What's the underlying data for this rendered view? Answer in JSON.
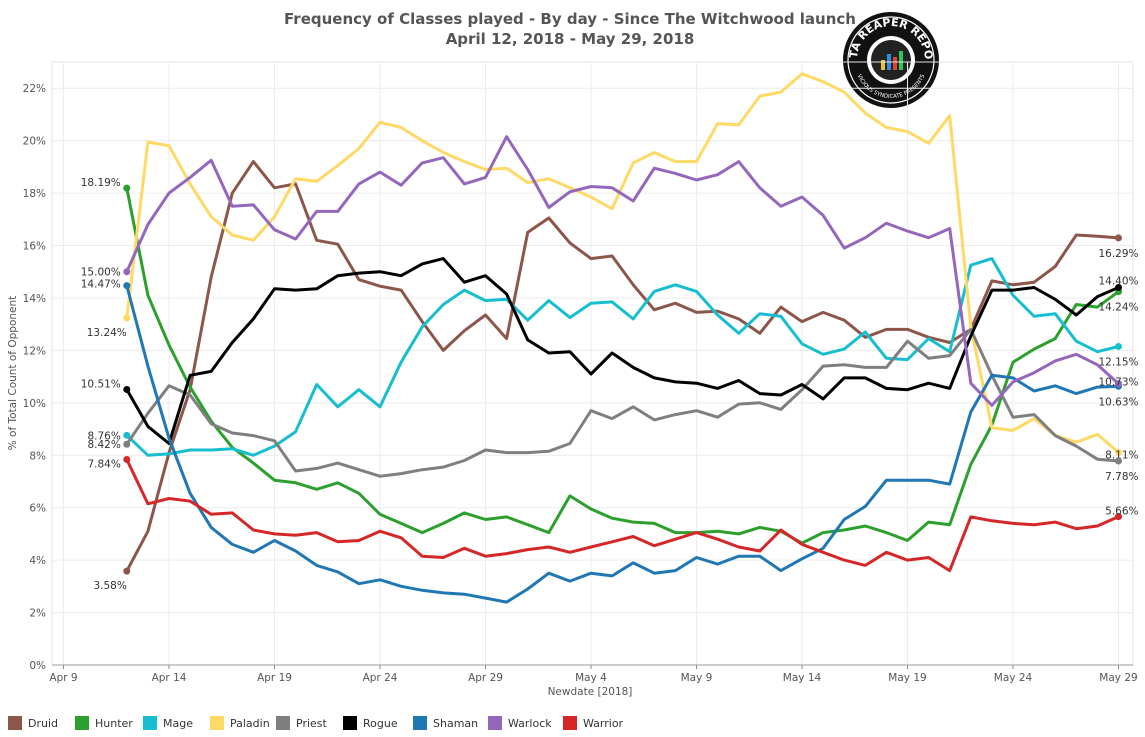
{
  "chart_data": {
    "type": "line",
    "title": "Frequency of Classes played - By day - Since The Witchwood launch",
    "subtitle": "April 12, 2018 - May 29, 2018",
    "xlabel": "Newdate [2018]",
    "ylabel": "% of Total Count of Opponent",
    "x_ticks": [
      "Apr 9",
      "Apr 14",
      "Apr 19",
      "Apr 24",
      "Apr 29",
      "May 4",
      "May 9",
      "May 14",
      "May 19",
      "May 24",
      "May 29"
    ],
    "y_ticks": [
      "0%",
      "2%",
      "4%",
      "6%",
      "8%",
      "10%",
      "12%",
      "14%",
      "16%",
      "18%",
      "20%",
      "22%"
    ],
    "ylim": [
      0,
      23
    ],
    "grid": true,
    "legend_position": "bottom",
    "x": [
      "Apr 12",
      "Apr 13",
      "Apr 14",
      "Apr 15",
      "Apr 16",
      "Apr 17",
      "Apr 18",
      "Apr 19",
      "Apr 20",
      "Apr 21",
      "Apr 22",
      "Apr 23",
      "Apr 24",
      "Apr 25",
      "Apr 26",
      "Apr 27",
      "Apr 28",
      "Apr 29",
      "Apr 30",
      "May 1",
      "May 2",
      "May 3",
      "May 4",
      "May 5",
      "May 6",
      "May 7",
      "May 8",
      "May 9",
      "May 10",
      "May 11",
      "May 12",
      "May 13",
      "May 14",
      "May 15",
      "May 16",
      "May 17",
      "May 18",
      "May 19",
      "May 20",
      "May 21",
      "May 22",
      "May 23",
      "May 24",
      "May 25",
      "May 26",
      "May 27",
      "May 28",
      "May 29"
    ],
    "series": [
      {
        "name": "Druid",
        "color": "#8c564b",
        "start_label": "3.58%",
        "end_label": "16.29%",
        "values": [
          3.58,
          5.1,
          8.1,
          10.5,
          14.8,
          18.0,
          19.2,
          18.2,
          18.35,
          16.2,
          16.05,
          14.7,
          14.45,
          14.3,
          13.1,
          12.0,
          12.75,
          13.35,
          12.45,
          16.5,
          17.05,
          16.1,
          15.5,
          15.6,
          14.5,
          13.55,
          13.8,
          13.45,
          13.5,
          13.2,
          12.65,
          13.65,
          13.1,
          13.45,
          13.15,
          12.5,
          12.8,
          12.8,
          12.5,
          12.3,
          12.8,
          14.65,
          14.5,
          14.6,
          15.2,
          16.4,
          16.35,
          16.29
        ]
      },
      {
        "name": "Hunter",
        "color": "#2ca02c",
        "start_label": "18.19%",
        "end_label": "14.24%",
        "values": [
          18.19,
          14.1,
          12.2,
          10.6,
          9.3,
          8.3,
          7.7,
          7.05,
          6.95,
          6.7,
          6.95,
          6.55,
          5.75,
          5.4,
          5.05,
          5.4,
          5.8,
          5.55,
          5.65,
          5.35,
          5.05,
          6.45,
          5.95,
          5.6,
          5.45,
          5.4,
          5.05,
          5.05,
          5.1,
          5.0,
          5.25,
          5.1,
          4.65,
          5.05,
          5.15,
          5.3,
          5.05,
          4.75,
          5.45,
          5.35,
          7.65,
          9.15,
          11.55,
          12.05,
          12.45,
          13.75,
          13.65,
          14.24
        ]
      },
      {
        "name": "Mage",
        "color": "#17becf",
        "start_label": "8.76%",
        "end_label": "12.15%",
        "values": [
          8.76,
          8.0,
          8.05,
          8.2,
          8.2,
          8.25,
          8.0,
          8.35,
          8.9,
          10.7,
          9.85,
          10.5,
          9.85,
          11.55,
          12.9,
          13.75,
          14.3,
          13.9,
          13.95,
          13.15,
          13.9,
          13.25,
          13.8,
          13.85,
          13.2,
          14.25,
          14.5,
          14.25,
          13.35,
          12.65,
          13.4,
          13.3,
          12.25,
          11.85,
          12.05,
          12.7,
          11.7,
          11.65,
          12.45,
          11.95,
          15.25,
          15.5,
          14.1,
          13.3,
          13.4,
          12.35,
          11.95,
          12.15
        ]
      },
      {
        "name": "Paladin",
        "color": "#ffd966",
        "start_label": "13.24%",
        "end_label": "8.11%",
        "values": [
          13.24,
          19.95,
          19.8,
          18.35,
          17.1,
          16.4,
          16.2,
          17.1,
          18.55,
          18.45,
          19.05,
          19.7,
          20.7,
          20.5,
          20.0,
          19.55,
          19.2,
          18.9,
          18.95,
          18.4,
          18.55,
          18.2,
          17.85,
          17.4,
          19.15,
          19.55,
          19.2,
          19.2,
          20.65,
          20.6,
          21.7,
          21.85,
          22.55,
          22.25,
          21.85,
          21.05,
          20.5,
          20.35,
          19.9,
          20.95,
          12.9,
          9.05,
          8.95,
          9.4,
          8.75,
          8.5,
          8.8,
          8.11
        ]
      },
      {
        "name": "Priest",
        "color": "#7f7f7f",
        "start_label": "8.42%",
        "end_label": "7.78%",
        "values": [
          8.42,
          9.6,
          10.65,
          10.3,
          9.2,
          8.85,
          8.75,
          8.55,
          7.4,
          7.5,
          7.7,
          7.45,
          7.2,
          7.3,
          7.45,
          7.55,
          7.8,
          8.2,
          8.1,
          8.1,
          8.15,
          8.45,
          9.7,
          9.4,
          9.85,
          9.35,
          9.55,
          9.7,
          9.45,
          9.95,
          10.0,
          9.75,
          10.5,
          11.4,
          11.45,
          11.35,
          11.35,
          12.35,
          11.7,
          11.8,
          12.8,
          11.05,
          9.45,
          9.55,
          8.75,
          8.35,
          7.85,
          7.78
        ]
      },
      {
        "name": "Rogue",
        "color": "#000000",
        "start_label": "10.51%",
        "end_label": "14.40%",
        "values": [
          10.51,
          9.1,
          8.45,
          11.05,
          11.2,
          12.3,
          13.2,
          14.35,
          14.3,
          14.35,
          14.85,
          14.95,
          15.0,
          14.85,
          15.3,
          15.5,
          14.6,
          14.85,
          14.15,
          12.4,
          11.9,
          11.95,
          11.1,
          11.9,
          11.35,
          10.95,
          10.8,
          10.75,
          10.55,
          10.85,
          10.35,
          10.3,
          10.7,
          10.15,
          10.95,
          10.95,
          10.55,
          10.5,
          10.75,
          10.55,
          12.55,
          14.3,
          14.3,
          14.4,
          13.95,
          13.35,
          14.05,
          14.4
        ]
      },
      {
        "name": "Shaman",
        "color": "#1f77b4",
        "start_label": "14.47%",
        "end_label": "10.63%",
        "values": [
          14.47,
          11.4,
          8.65,
          6.55,
          5.25,
          4.6,
          4.3,
          4.75,
          4.35,
          3.8,
          3.55,
          3.1,
          3.25,
          3.0,
          2.85,
          2.75,
          2.7,
          2.55,
          2.4,
          2.9,
          3.5,
          3.2,
          3.5,
          3.4,
          3.9,
          3.5,
          3.6,
          4.1,
          3.85,
          4.15,
          4.15,
          3.6,
          4.05,
          4.45,
          5.55,
          6.05,
          7.05,
          7.05,
          7.05,
          6.9,
          9.65,
          11.05,
          10.95,
          10.45,
          10.65,
          10.35,
          10.6,
          10.63
        ]
      },
      {
        "name": "Warlock",
        "color": "#9467bd",
        "start_label": "15.00%",
        "end_label": "10.73%",
        "values": [
          15.0,
          16.8,
          18.0,
          18.6,
          19.25,
          17.5,
          17.55,
          16.6,
          16.25,
          17.3,
          17.3,
          18.35,
          18.8,
          18.3,
          19.15,
          19.35,
          18.35,
          18.6,
          20.15,
          18.9,
          17.45,
          18.05,
          18.25,
          18.2,
          17.7,
          18.95,
          18.75,
          18.5,
          18.7,
          19.2,
          18.2,
          17.5,
          17.85,
          17.15,
          15.9,
          16.3,
          16.85,
          16.55,
          16.3,
          16.65,
          10.75,
          9.9,
          10.8,
          11.15,
          11.6,
          11.85,
          11.45,
          10.73
        ]
      },
      {
        "name": "Warrior",
        "color": "#d62728",
        "start_label": "7.84%",
        "end_label": "5.66%",
        "values": [
          7.84,
          6.15,
          6.35,
          6.25,
          5.75,
          5.8,
          5.15,
          5.0,
          4.95,
          5.05,
          4.7,
          4.75,
          5.1,
          4.85,
          4.15,
          4.1,
          4.45,
          4.15,
          4.25,
          4.4,
          4.5,
          4.3,
          4.5,
          4.7,
          4.9,
          4.55,
          4.8,
          5.05,
          4.8,
          4.5,
          4.35,
          5.15,
          4.6,
          4.3,
          4.0,
          3.8,
          4.3,
          4.0,
          4.1,
          3.6,
          5.65,
          5.5,
          5.4,
          5.35,
          5.45,
          5.2,
          5.3,
          5.66
        ]
      }
    ]
  },
  "logo": {
    "text_top": "DATA REAPER REPORT",
    "text_bottom": "VICIOUS SYNDICATE PRESENTS"
  }
}
